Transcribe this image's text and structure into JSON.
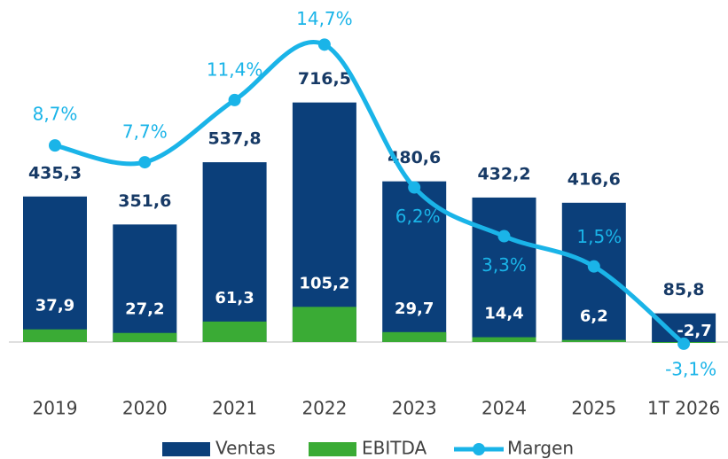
{
  "chart_data": {
    "type": "bar",
    "categories": [
      "2019",
      "2020",
      "2021",
      "2022",
      "2023",
      "2024",
      "2025",
      "1T 2026"
    ],
    "series": [
      {
        "name": "Ventas",
        "color": "#0b3f7a",
        "values": [
          435.3,
          351.6,
          537.8,
          716.5,
          480.6,
          432.2,
          416.6,
          85.8
        ],
        "value_labels": [
          "435,3",
          "351,6",
          "537,8",
          "716,5",
          "480,6",
          "432,2",
          "416,6",
          "85,8"
        ]
      },
      {
        "name": "EBITDA",
        "color": "#3aab35",
        "values": [
          37.9,
          27.2,
          61.3,
          105.2,
          29.7,
          14.4,
          6.2,
          -2.7
        ],
        "value_labels": [
          "37,9",
          "27,2",
          "61,3",
          "105,2",
          "29,7",
          "14,4",
          "6,2",
          "-2,7"
        ]
      },
      {
        "name": "Margen",
        "type": "line",
        "axis": "y2",
        "color": "#1ab4e8",
        "values": [
          8.7,
          7.7,
          11.4,
          14.7,
          6.2,
          3.3,
          1.5,
          -3.1
        ],
        "value_labels": [
          "8,7%",
          "7,7%",
          "11,4%",
          "14,7%",
          "6,2%",
          "3,3%",
          "1,5%",
          "-3,1%"
        ]
      }
    ],
    "ylim": [
      0,
      970
    ],
    "y2lim": [
      -3,
      16.3
    ],
    "legend": "bottom"
  }
}
